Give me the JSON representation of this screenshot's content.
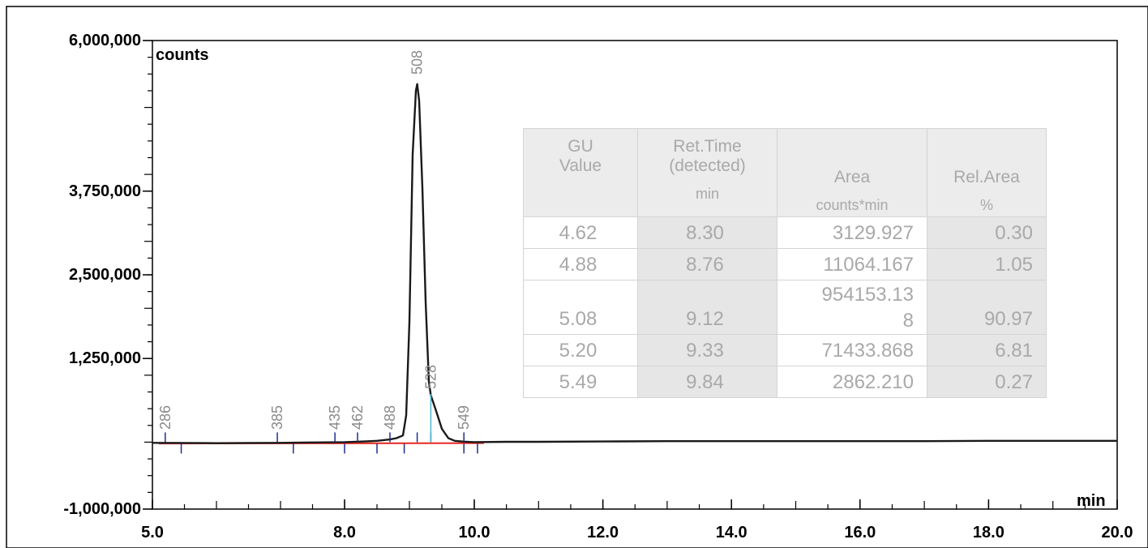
{
  "chart_data": {
    "type": "line",
    "xlim": [
      5.0,
      20.0
    ],
    "ylim": [
      -1000000,
      6000000
    ],
    "x_ticks": [
      {
        "value": 5.0,
        "label": "5.0"
      },
      {
        "value": 8.0,
        "label": "8.0"
      },
      {
        "value": 10.0,
        "label": "10.0"
      },
      {
        "value": 12.0,
        "label": "12.0"
      },
      {
        "value": 14.0,
        "label": "14.0"
      },
      {
        "value": 16.0,
        "label": "16.0"
      },
      {
        "value": 18.0,
        "label": "18.0"
      },
      {
        "value": 20.0,
        "label": "20.0"
      }
    ],
    "y_ticks": [
      {
        "value": 6000000,
        "label": "6,000,000"
      },
      {
        "value": 3750000,
        "label": "3,750,000"
      },
      {
        "value": 2500000,
        "label": "2,500,000"
      },
      {
        "value": 1250000,
        "label": "1,250,000"
      },
      {
        "value": -1000000,
        "label": "-1,000,000"
      }
    ],
    "xlabel": "min",
    "ylabel": "counts",
    "grid": false,
    "series": [
      {
        "x": [
          5.0,
          5.5,
          6.0,
          6.5,
          7.0,
          7.5,
          8.0,
          8.3,
          8.5,
          8.7,
          8.8,
          8.9,
          8.95,
          9.0,
          9.05,
          9.1,
          9.12,
          9.15,
          9.2,
          9.25,
          9.3,
          9.33,
          9.4,
          9.5,
          9.6,
          9.7,
          9.84,
          10.0,
          10.5,
          11.0,
          12.0,
          13.0,
          14.0,
          15.0,
          16.0,
          17.0,
          18.0,
          19.0,
          20.0
        ],
        "y": [
          -10000,
          -12000,
          -15000,
          -12000,
          -10000,
          -5000,
          0,
          10000,
          20000,
          40000,
          60000,
          100000,
          400000,
          1800000,
          4300000,
          5250000,
          5350000,
          5100000,
          3800000,
          2100000,
          900000,
          700000,
          500000,
          200000,
          60000,
          20000,
          8000,
          0,
          5000,
          5000,
          10000,
          15000,
          15000,
          15000,
          15000,
          15000,
          20000,
          20000,
          20000
        ]
      }
    ],
    "peak_labels": [
      {
        "x": 5.2,
        "label": "286"
      },
      {
        "x": 6.95,
        "label": "385"
      },
      {
        "x": 7.85,
        "label": "435"
      },
      {
        "x": 8.2,
        "label": "462"
      },
      {
        "x": 8.7,
        "label": "488"
      },
      {
        "x": 9.12,
        "label": "508"
      },
      {
        "x": 9.33,
        "label": "528"
      },
      {
        "x": 9.84,
        "label": "549"
      }
    ],
    "table": {
      "headers": [
        [
          "GU",
          "Value"
        ],
        [
          "Ret.Time",
          "(detected)",
          "min"
        ],
        [
          "Area",
          "counts*min"
        ],
        [
          "Rel.Area",
          "%"
        ]
      ],
      "rows": [
        [
          "4.62",
          "8.30",
          "3129.927",
          "0.30"
        ],
        [
          "4.88",
          "8.76",
          "11064.167",
          "1.05"
        ],
        [
          "5.08",
          "9.12",
          "954153.13 8",
          "90.97"
        ],
        [
          "5.20",
          "9.33",
          "71433.868",
          "6.81"
        ],
        [
          "5.49",
          "9.84",
          "2862.210",
          "0.27"
        ]
      ]
    }
  },
  "colors": {
    "trace": "#1a1a1a",
    "baseline": "#e8261f",
    "marker": "#1f2d8a",
    "peak_marker": "#4fb8d6",
    "table_text": "#a9a9a9"
  }
}
